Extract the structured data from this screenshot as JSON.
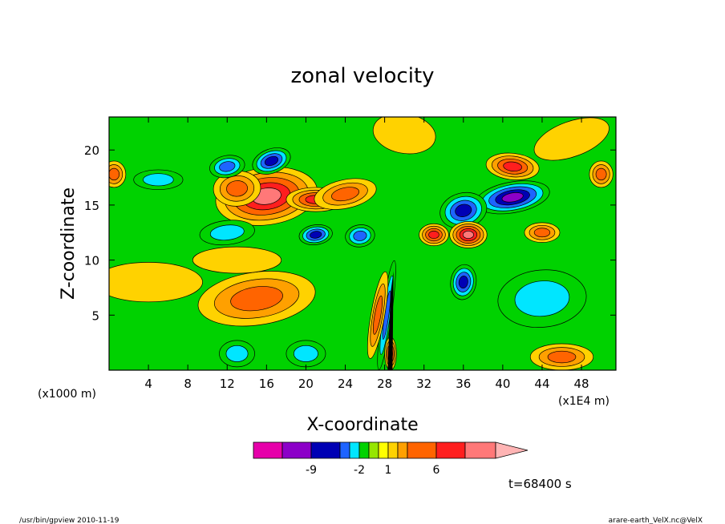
{
  "chart_data": {
    "type": "heatmap",
    "title": "zonal velocity",
    "xlabel": "X-coordinate",
    "ylabel": "Z-coordinate",
    "x_unit_left": "(x1000 m)",
    "x_unit_right": "(x1E4 m)",
    "xlim": [
      0,
      51.5
    ],
    "ylim": [
      0,
      23
    ],
    "x_ticks": [
      4,
      8,
      12,
      16,
      20,
      24,
      28,
      32,
      36,
      40,
      44,
      48
    ],
    "y_ticks": [
      5,
      10,
      15,
      20
    ],
    "grid": false,
    "colorbar": {
      "position": "bottom",
      "levels": [
        -12,
        -9,
        -6,
        -3,
        -2,
        -1,
        0,
        1,
        2,
        3,
        6,
        9,
        12
      ],
      "colors": [
        "#e600aa",
        "#8c00c8",
        "#0000b4",
        "#1e64ff",
        "#00e6ff",
        "#00d200",
        "#96e600",
        "#ffff00",
        "#ffd200",
        "#ffa000",
        "#ff6400",
        "#ff1e1e",
        "#ff7878",
        "#ffb4b4"
      ],
      "tick_labels": [
        "-9",
        "-2",
        "1",
        "6"
      ],
      "tick_values": [
        -9,
        -2,
        1,
        6
      ]
    },
    "background": "#00d200",
    "features": [
      {
        "x": 16,
        "y": 15.8,
        "value": 9
      },
      {
        "x": 13,
        "y": 16.5,
        "value": 4
      },
      {
        "x": 21,
        "y": 15.5,
        "value": 6
      },
      {
        "x": 24,
        "y": 16,
        "value": 3
      },
      {
        "x": 16.5,
        "y": 19,
        "value": -6
      },
      {
        "x": 12,
        "y": 18.5,
        "value": -3
      },
      {
        "x": 5,
        "y": 17.3,
        "value": -2
      },
      {
        "x": 21,
        "y": 12.3,
        "value": -6
      },
      {
        "x": 25.5,
        "y": 12.2,
        "value": -4
      },
      {
        "x": 12,
        "y": 12.5,
        "value": -2
      },
      {
        "x": 41,
        "y": 15.7,
        "value": -9
      },
      {
        "x": 36,
        "y": 14.5,
        "value": -6
      },
      {
        "x": 41,
        "y": 18.5,
        "value": 6
      },
      {
        "x": 36.5,
        "y": 12.3,
        "value": 9
      },
      {
        "x": 33,
        "y": 12.3,
        "value": 6
      },
      {
        "x": 44,
        "y": 12.5,
        "value": 3
      },
      {
        "x": 36,
        "y": 8,
        "value": -6
      },
      {
        "x": 44,
        "y": 6.5,
        "value": -2
      },
      {
        "x": 15,
        "y": 6.5,
        "value": 3
      },
      {
        "x": 4,
        "y": 8,
        "value": 1
      },
      {
        "x": 13,
        "y": 10,
        "value": 1
      },
      {
        "x": 30,
        "y": 21.5,
        "value": 1
      },
      {
        "x": 47,
        "y": 21,
        "value": 1
      },
      {
        "x": 50,
        "y": 17.8,
        "value": 3
      },
      {
        "x": 0.5,
        "y": 17.8,
        "value": 3
      },
      {
        "x": 13,
        "y": 1.5,
        "value": -2
      },
      {
        "x": 20,
        "y": 1.5,
        "value": -2
      },
      {
        "x": 46,
        "y": 1.2,
        "value": 3
      },
      {
        "x": 28.2,
        "y": 5,
        "value": -3
      },
      {
        "x": 28.6,
        "y": 1.5,
        "value": 6
      },
      {
        "x": 27.3,
        "y": 5,
        "value": 3
      }
    ]
  },
  "time_label": "t=68400 s",
  "footer": {
    "left": "/usr/bin/gpview   2010-11-19",
    "right": "arare-earth_VelX.nc@VelX"
  }
}
